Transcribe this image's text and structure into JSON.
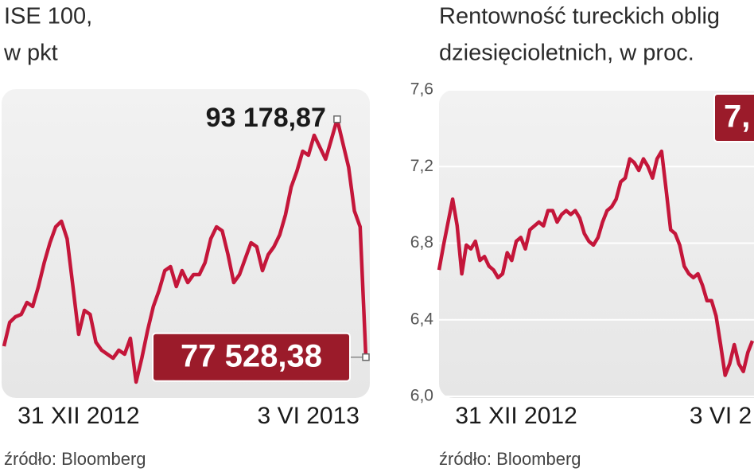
{
  "chart_data": [
    {
      "type": "line",
      "title": [
        "ISE 100,",
        "w pkt"
      ],
      "source": "źródło: Bloomberg",
      "color": "#c4163a",
      "categories": [
        null,
        null,
        null,
        null,
        null,
        null,
        null,
        null,
        null,
        null,
        null,
        null,
        null,
        "31 XII 2012",
        null,
        null,
        null,
        null,
        null,
        null,
        null,
        null,
        null,
        null,
        null,
        null,
        null,
        null,
        null,
        null,
        null,
        null,
        null,
        null,
        null,
        null,
        null,
        null,
        null,
        null,
        null,
        null,
        null,
        null,
        null,
        null,
        null,
        null,
        null,
        null,
        null,
        null,
        null,
        "3 VI 2013",
        null,
        null,
        null,
        null,
        null,
        null,
        null,
        null,
        null,
        null
      ],
      "values": [
        78245,
        79816,
        80182,
        80339,
        81125,
        80863,
        82172,
        83743,
        85052,
        86099,
        86465,
        85313,
        82172,
        79030,
        80601,
        80339,
        78507,
        77983,
        77721,
        77459,
        77983,
        77721,
        78768,
        75889,
        77459,
        79292,
        80863,
        81910,
        83219,
        83481,
        82172,
        83219,
        82434,
        82957,
        82957,
        83743,
        85313,
        86099,
        85837,
        84266,
        82434,
        82957,
        84004,
        85052,
        84790,
        83219,
        84266,
        84790,
        85575,
        86884,
        88717,
        89764,
        91073,
        90811,
        92120,
        91335,
        90549,
        91858,
        93178.87,
        91597,
        90026,
        87146,
        86099,
        77528.38
      ],
      "value_labels": [
        null,
        null,
        null,
        null,
        null,
        null,
        null,
        null,
        null,
        null,
        null,
        null,
        null,
        null,
        null,
        null,
        null,
        null,
        null,
        null,
        null,
        null,
        null,
        null,
        null,
        null,
        null,
        null,
        null,
        null,
        null,
        null,
        null,
        null,
        null,
        null,
        null,
        null,
        null,
        null,
        null,
        null,
        null,
        null,
        null,
        null,
        null,
        null,
        null,
        null,
        null,
        null,
        null,
        null,
        null,
        null,
        null,
        null,
        "93 178,87",
        null,
        null,
        null,
        null,
        "77 528,38"
      ],
      "ylim": [
        75000,
        95000
      ]
    },
    {
      "type": "line",
      "title": [
        "Rentowność tureckich oblig",
        "dziesięcioletnich, w proc."
      ],
      "source": "źródło: Bloomberg",
      "color": "#c4163a",
      "categories": [
        null,
        null,
        null,
        null,
        null,
        null,
        null,
        null,
        null,
        null,
        null,
        null,
        null,
        null,
        null,
        null,
        null,
        "31 XII 2012",
        null,
        null,
        null,
        null,
        null,
        null,
        null,
        null,
        null,
        null,
        null,
        null,
        null,
        null,
        null,
        null,
        null,
        null,
        null,
        null,
        null,
        null,
        null,
        null,
        null,
        null,
        null,
        null,
        null,
        null,
        null,
        null,
        null,
        null,
        null,
        null,
        null,
        null,
        null,
        null,
        null,
        null,
        null,
        null,
        "3 VI 2",
        null,
        null,
        null,
        null,
        null,
        null,
        null
      ],
      "values": [
        6.66,
        6.79,
        6.91,
        7.03,
        6.89,
        6.64,
        6.79,
        6.77,
        6.81,
        6.71,
        6.73,
        6.68,
        6.66,
        6.62,
        6.64,
        6.75,
        6.71,
        6.81,
        6.83,
        6.77,
        6.87,
        6.89,
        6.91,
        6.89,
        6.97,
        6.97,
        6.91,
        6.95,
        6.97,
        6.95,
        6.97,
        6.93,
        6.85,
        6.81,
        6.79,
        6.83,
        6.91,
        6.97,
        6.99,
        7.03,
        7.12,
        7.14,
        7.24,
        7.22,
        7.18,
        7.24,
        7.2,
        7.14,
        7.24,
        7.28,
        7.08,
        6.87,
        6.85,
        6.79,
        6.68,
        6.64,
        6.62,
        6.64,
        6.58,
        6.5,
        6.5,
        6.42,
        6.27,
        6.11,
        6.17,
        6.27,
        6.17,
        6.13,
        6.23,
        6.29
      ],
      "annotation": "7,",
      "ylim": [
        6.0,
        7.6
      ],
      "yticks": [
        {
          "value": 6.0,
          "label": "6,0"
        },
        {
          "value": 6.4,
          "label": "6,4"
        },
        {
          "value": 6.8,
          "label": "6,8"
        },
        {
          "value": 7.2,
          "label": "7,2"
        },
        {
          "value": 7.6,
          "label": "7,6"
        }
      ],
      "grid": true
    }
  ]
}
